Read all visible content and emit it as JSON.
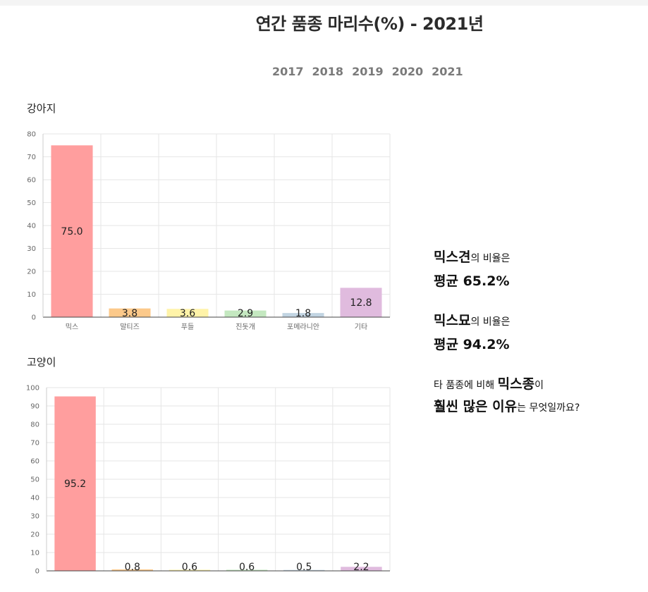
{
  "title": "연간 품종 마리수(%) - 2021년",
  "years": [
    "2017",
    "2018",
    "2019",
    "2020",
    "2021"
  ],
  "dog": {
    "heading": "강아지"
  },
  "cat": {
    "heading": "고양이"
  },
  "chart_data": [
    {
      "type": "bar",
      "title": "강아지",
      "categories": [
        "믹스",
        "말티즈",
        "푸들",
        "진돗개",
        "포메라니안",
        "기타"
      ],
      "values": [
        75.0,
        3.8,
        3.6,
        2.9,
        1.8,
        12.8
      ],
      "labels": [
        "75.0",
        "3.8",
        "3.6",
        "2.9",
        "1.8",
        "12.8"
      ],
      "colors": [
        "#ff9e9e",
        "#fcc98a",
        "#fff3a8",
        "#c4e8c0",
        "#c2d4e2",
        "#e0bbde"
      ],
      "ylim": [
        0,
        80
      ],
      "yticks": [
        "0",
        "10",
        "20",
        "30",
        "40",
        "50",
        "60",
        "70",
        "80"
      ],
      "grid": true,
      "legend": "none"
    },
    {
      "type": "bar",
      "title": "고양이",
      "categories": [
        "",
        "",
        "",
        "",
        "",
        ""
      ],
      "values": [
        95.2,
        0.8,
        0.6,
        0.6,
        0.5,
        2.2
      ],
      "labels": [
        "95.2",
        "0.8",
        "0.6",
        "0.6",
        "0.5",
        "2.2"
      ],
      "colors": [
        "#ff9e9e",
        "#fcc98a",
        "#fff3a8",
        "#c4e8c0",
        "#c2d4e2",
        "#e0bbde"
      ],
      "ylim": [
        0,
        100
      ],
      "yticks": [
        "0",
        "10",
        "20",
        "30",
        "40",
        "50",
        "60",
        "70",
        "80",
        "90",
        "100"
      ],
      "grid": true,
      "legend": "none"
    }
  ],
  "side": {
    "dog_strong": "믹스견",
    "dog_rest": "의 비율은",
    "dog_avg": "평균 65.2%",
    "cat_strong": "믹스묘",
    "cat_rest": "의 비율은",
    "cat_avg": "평균 94.2%",
    "q1_pre": "타 품종에 비해 ",
    "q1_strong": "믹스종",
    "q1_post": "이",
    "q2_strong": "훨씬 많은 이유",
    "q2_post": "는 무엇일까요?"
  }
}
